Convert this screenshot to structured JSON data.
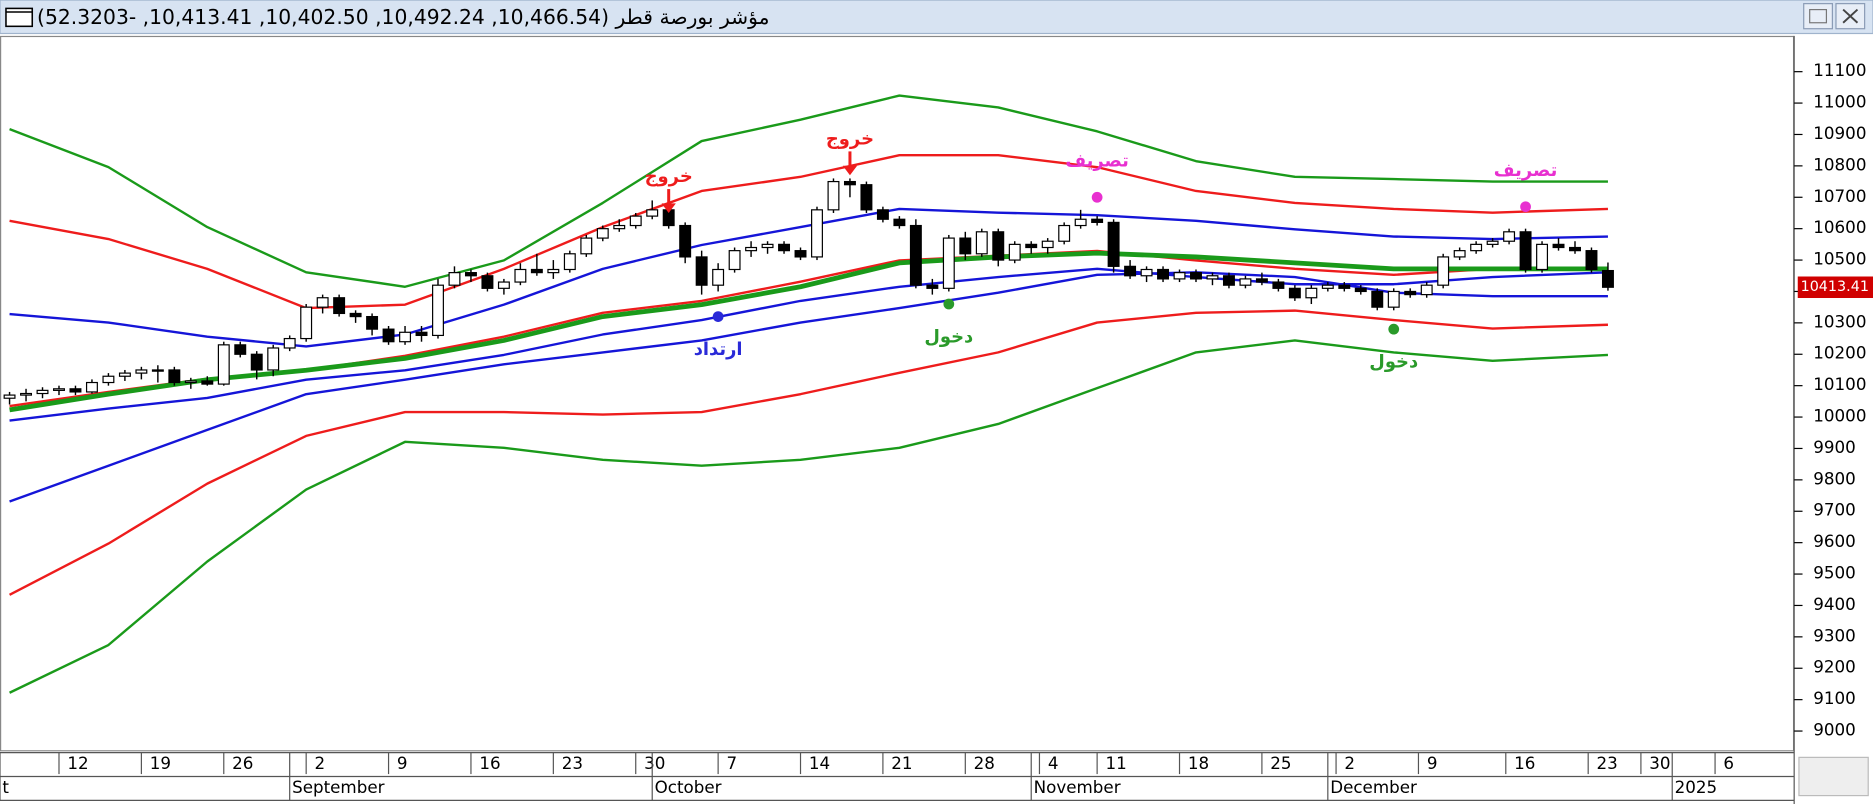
{
  "chart_data": {
    "type": "candlestick",
    "title": "مؤشر بورصة قطر (10,466.54, 10,492.24, 10,402.50, 10,413.41, -52.3203)",
    "x": [
      0,
      1,
      2,
      3,
      4,
      5,
      6,
      7,
      8,
      9,
      10,
      11,
      12,
      13,
      14,
      15,
      16,
      17,
      18,
      19,
      20,
      21,
      22,
      23,
      24,
      25,
      26,
      27,
      28,
      29,
      30,
      31,
      32,
      33,
      34,
      35,
      36,
      37,
      38,
      39,
      40,
      41,
      42,
      43,
      44,
      45,
      46,
      47,
      48,
      49,
      50,
      51,
      52,
      53,
      54,
      55,
      56,
      57,
      58,
      59,
      60,
      61,
      62,
      63,
      64,
      65,
      66,
      67,
      68,
      69,
      70,
      71,
      72,
      73,
      74,
      75,
      76,
      77,
      78,
      79,
      80,
      81,
      82,
      83,
      84,
      85,
      86,
      87,
      88,
      89,
      90,
      91,
      92,
      93,
      94,
      95,
      96,
      97
    ],
    "open": [
      10060,
      10070,
      10075,
      10085,
      10090,
      10080,
      10110,
      10130,
      10140,
      10150,
      10150,
      10110,
      10115,
      10105,
      10230,
      10200,
      10150,
      10220,
      10250,
      10350,
      10380,
      10330,
      10320,
      10280,
      10240,
      10270,
      10260,
      10420,
      10460,
      10450,
      10410,
      10430,
      10470,
      10460,
      10470,
      10520,
      10570,
      10600,
      10610,
      10640,
      10660,
      10610,
      10510,
      10420,
      10470,
      10530,
      10540,
      10550,
      10530,
      10510,
      10660,
      10750,
      10740,
      10660,
      10630,
      10610,
      10420,
      10410,
      10570,
      10520,
      10590,
      10500,
      10550,
      10540,
      10560,
      10610,
      10630,
      10620,
      10480,
      10450,
      10470,
      10440,
      10460,
      10440,
      10450,
      10420,
      10440,
      10430,
      10410,
      10380,
      10410,
      10420,
      10410,
      10400,
      10350,
      10400,
      10390,
      10420,
      10510,
      10530,
      10550,
      10560,
      10590,
      10470,
      10550,
      10540,
      10530,
      10466.54
    ],
    "high": [
      10080,
      10090,
      10095,
      10100,
      10100,
      10120,
      10140,
      10150,
      10160,
      10165,
      10160,
      10125,
      10130,
      10240,
      10240,
      10210,
      10230,
      10260,
      10360,
      10390,
      10390,
      10340,
      10330,
      10290,
      10290,
      10290,
      10440,
      10480,
      10470,
      10460,
      10440,
      10490,
      10520,
      10500,
      10530,
      10580,
      10610,
      10630,
      10650,
      10690,
      10670,
      10620,
      10530,
      10490,
      10540,
      10560,
      10560,
      10560,
      10540,
      10670,
      10760,
      10760,
      10750,
      10670,
      10640,
      10630,
      10440,
      10580,
      10590,
      10600,
      10600,
      10560,
      10560,
      10570,
      10620,
      10660,
      10640,
      10630,
      10500,
      10480,
      10480,
      10470,
      10470,
      10460,
      10460,
      10450,
      10460,
      10440,
      10420,
      10420,
      10430,
      10430,
      10420,
      10410,
      10410,
      10410,
      10430,
      10520,
      10540,
      10560,
      10570,
      10600,
      10600,
      10560,
      10570,
      10560,
      10540,
      10492.24
    ],
    "low": [
      10040,
      10050,
      10060,
      10070,
      10070,
      10075,
      10100,
      10115,
      10120,
      10110,
      10100,
      10090,
      10100,
      10100,
      10190,
      10120,
      10130,
      10210,
      10240,
      10330,
      10320,
      10300,
      10260,
      10230,
      10230,
      10240,
      10250,
      10410,
      10430,
      10400,
      10390,
      10420,
      10450,
      10440,
      10460,
      10510,
      10560,
      10590,
      10600,
      10630,
      10600,
      10490,
      10390,
      10400,
      10460,
      10510,
      10520,
      10520,
      10500,
      10500,
      10650,
      10700,
      10650,
      10620,
      10600,
      10410,
      10390,
      10400,
      10500,
      10510,
      10480,
      10490,
      10520,
      10520,
      10550,
      10600,
      10610,
      10460,
      10440,
      10430,
      10430,
      10430,
      10430,
      10420,
      10410,
      10410,
      10420,
      10400,
      10370,
      10360,
      10400,
      10400,
      10390,
      10340,
      10340,
      10380,
      10380,
      10410,
      10500,
      10520,
      10540,
      10550,
      10460,
      10460,
      10530,
      10520,
      10460,
      10402.5
    ],
    "close": [
      10070,
      10075,
      10085,
      10090,
      10080,
      10110,
      10130,
      10140,
      10150,
      10150,
      10110,
      10115,
      10105,
      10230,
      10200,
      10150,
      10220,
      10250,
      10350,
      10380,
      10330,
      10320,
      10280,
      10240,
      10270,
      10260,
      10420,
      10460,
      10450,
      10410,
      10430,
      10470,
      10460,
      10470,
      10520,
      10570,
      10600,
      10610,
      10640,
      10660,
      10610,
      10510,
      10420,
      10470,
      10530,
      10540,
      10550,
      10530,
      10510,
      10660,
      10750,
      10740,
      10660,
      10630,
      10610,
      10420,
      10410,
      10570,
      10520,
      10590,
      10500,
      10550,
      10540,
      10560,
      10610,
      10630,
      10620,
      10480,
      10450,
      10470,
      10440,
      10460,
      10440,
      10450,
      10420,
      10440,
      10430,
      10410,
      10380,
      10410,
      10420,
      10410,
      10400,
      10350,
      10400,
      10390,
      10420,
      10510,
      10530,
      10550,
      10560,
      10590,
      10470,
      10550,
      10540,
      10530,
      10470,
      10413.41
    ],
    "up_color": "#ffffff",
    "down_color": "#000000",
    "last_price": 10413.41,
    "last_price_color": "#d00000",
    "line_x": [
      0,
      6,
      12,
      18,
      24,
      30,
      36,
      42,
      48,
      54,
      60,
      66,
      72,
      78,
      84,
      90,
      97
    ],
    "lines": [
      {
        "color": "#1a9a1a",
        "width": 2,
        "values": [
          10917,
          10796,
          10605,
          10461,
          10415,
          10499,
          10682,
          10879,
          10947,
          11024,
          10986,
          10910,
          10815,
          10765,
          10758,
          10750,
          10750
        ]
      },
      {
        "color": "#ee1c1c",
        "width": 2,
        "values": [
          10625,
          10567,
          10472,
          10347,
          10358,
          10472,
          10605,
          10720,
          10765,
          10834,
          10834,
          10796,
          10720,
          10682,
          10663,
          10651,
          10663
        ]
      },
      {
        "color": "#1515d8",
        "width": 2,
        "values": [
          10328,
          10301,
          10256,
          10225,
          10263,
          10358,
          10472,
          10548,
          10605,
          10663,
          10651,
          10643,
          10625,
          10598,
          10575,
          10567,
          10575
        ]
      },
      {
        "color": "#1515d8",
        "width": 2,
        "values": [
          9989,
          10027,
          10061,
          10119,
          10149,
          10198,
          10263,
          10309,
          10370,
          10415,
          10446,
          10472,
          10446,
          10423,
          10423,
          10446,
          10461
        ]
      },
      {
        "color": "#ee1c1c",
        "width": 2,
        "values": [
          10035,
          10080,
          10122,
          10149,
          10195,
          10256,
          10332,
          10370,
          10431,
          10499,
          10514,
          10529,
          10499,
          10472,
          10453,
          10472,
          10472
        ]
      },
      {
        "color": "#1a9a1a",
        "width": 4,
        "values": [
          10023,
          10073,
          10119,
          10149,
          10187,
          10244,
          10320,
          10358,
          10415,
          10491,
          10510,
          10522,
          10510,
          10491,
          10472,
          10472,
          10472
        ]
      },
      {
        "color": "#1515d8",
        "width": 2,
        "values": [
          9731,
          9845,
          9959,
          10073,
          10119,
          10168,
          10206,
          10244,
          10301,
          10347,
          10396,
          10453,
          10461,
          10446,
          10396,
          10385,
          10385
        ]
      },
      {
        "color": "#ee1c1c",
        "width": 2,
        "values": [
          9434,
          9597,
          9788,
          9940,
          10016,
          10016,
          10008,
          10016,
          10073,
          10141,
          10206,
          10301,
          10332,
          10339,
          10309,
          10282,
          10294
        ]
      },
      {
        "color": "#1a9a1a",
        "width": 2,
        "values": [
          9122,
          9274,
          9540,
          9769,
          9921,
          9902,
          9864,
          9845,
          9864,
          9902,
          9978,
          10092,
          10206,
          10244,
          10206,
          10179,
          10198
        ]
      }
    ],
    "annotations": [
      {
        "text": "خروج",
        "color": "#ee1c1c",
        "marker": "arrow",
        "x": 40,
        "y": 10650
      },
      {
        "text": "خروج",
        "color": "#ee1c1c",
        "marker": "arrow",
        "x": 51,
        "y": 10770
      },
      {
        "text": "تصريف",
        "color": "#e830d0",
        "marker": "dot-above",
        "x": 66,
        "y": 10700
      },
      {
        "text": "تصريف",
        "color": "#e830d0",
        "marker": "dot-above",
        "x": 92,
        "y": 10670
      },
      {
        "text": "دخول",
        "color": "#2a9a2a",
        "marker": "dot-below",
        "x": 57,
        "y": 10360
      },
      {
        "text": "دخول",
        "color": "#2a9a2a",
        "marker": "dot-below",
        "x": 84,
        "y": 10280
      },
      {
        "text": "ارتداد",
        "color": "#2a2ad8",
        "marker": "dot-below",
        "x": 43,
        "y": 10320
      }
    ],
    "xlim": [
      -0.58,
      108.3
    ],
    "ylim": [
      8939,
      11214
    ],
    "yticks": [
      9000,
      9100,
      9200,
      9300,
      9400,
      9500,
      9600,
      9700,
      9800,
      9900,
      10000,
      10100,
      10200,
      10300,
      10400,
      10500,
      10600,
      10700,
      10800,
      10900,
      11000,
      11100
    ],
    "xticks": [
      {
        "value": 3,
        "label": "12"
      },
      {
        "value": 8,
        "label": "19"
      },
      {
        "value": 13,
        "label": "26"
      },
      {
        "value": 18,
        "label": "2"
      },
      {
        "value": 23,
        "label": "9"
      },
      {
        "value": 28,
        "label": "16"
      },
      {
        "value": 33,
        "label": "23"
      },
      {
        "value": 38,
        "label": "30"
      },
      {
        "value": 43,
        "label": "7"
      },
      {
        "value": 48,
        "label": "14"
      },
      {
        "value": 53,
        "label": "21"
      },
      {
        "value": 58,
        "label": "28"
      },
      {
        "value": 62.5,
        "label": "4"
      },
      {
        "value": 66,
        "label": "11"
      },
      {
        "value": 71,
        "label": "18"
      },
      {
        "value": 76,
        "label": "25"
      },
      {
        "value": 80.5,
        "label": "2"
      },
      {
        "value": 85.5,
        "label": "9"
      },
      {
        "value": 90.8,
        "label": "16"
      },
      {
        "value": 95.8,
        "label": "23"
      },
      {
        "value": 99,
        "label": "30"
      },
      {
        "value": 103.5,
        "label": "6"
      }
    ],
    "month_ticks": [
      {
        "value": -0.58,
        "label": "t"
      },
      {
        "value": 17,
        "label": "September"
      },
      {
        "value": 39,
        "label": "October"
      },
      {
        "value": 62,
        "label": "November"
      },
      {
        "value": 80,
        "label": "December"
      },
      {
        "value": 100.9,
        "label": "2025"
      }
    ]
  }
}
